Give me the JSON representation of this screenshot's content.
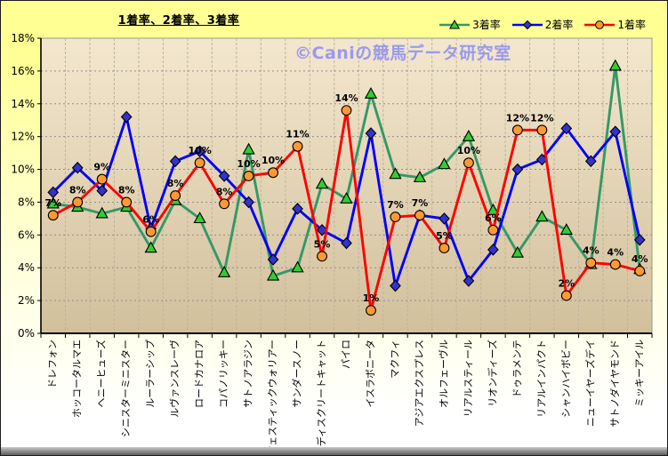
{
  "title": "1着率、2着率、3着率",
  "watermark": "©Caniの競馬データ研究室",
  "legend": {
    "items": [
      {
        "label": "3着率",
        "marker": "triangle"
      },
      {
        "label": "2着率",
        "marker": "diamond"
      },
      {
        "label": "1着率",
        "marker": "circle"
      }
    ]
  },
  "colors": {
    "page_top": "#FFFF94",
    "page_mid": "#FFFFD8",
    "page_bottom": "#FFFFFF",
    "plot_top": "#F3E7CE",
    "plot_bottom": "#D2C09C",
    "plot_frame": "#989890",
    "h_gridline": "#8F8F8F",
    "v_gridline": "#BFB49C",
    "axis": "#000000",
    "watermark": "#9A9AEE",
    "series_third_line": "#339966",
    "series_third_marker": "#33CC33",
    "series_second_line": "#0000FF",
    "series_second_marker": "#3333CC",
    "series_first_line": "#FF0000",
    "series_first_marker": "#FF9933",
    "marker_outline": "#000000",
    "label_text": "#000000"
  },
  "chart_data": {
    "type": "line",
    "title": "1着率、2着率、3着率",
    "xlabel": "",
    "ylabel": "",
    "ylim": [
      0,
      18
    ],
    "grid": true,
    "legend_position": "top-right",
    "categories": [
      "ドレフォン",
      "ホッコータルマエ",
      "ヘニーヒューズ",
      "シニスターミニスター",
      "ルーラーシップ",
      "ルヴァンスレーヴ",
      "ロードカナロア",
      "コパノリッキー",
      "サトノアラジン",
      "マジェスティックウォリアー",
      "サンダースノー",
      "ディスクリートキャット",
      "パイロ",
      "イスラボニータ",
      "マクフィ",
      "アジアエクスプレス",
      "オルフェーヴル",
      "リアルスティール",
      "リオンディーズ",
      "ドゥラメンテ",
      "リアルインパクト",
      "シャンハイボビー",
      "ニューイヤーズデイ",
      "サトノダイヤモンド",
      "ミッキーアイル"
    ],
    "series": [
      {
        "name": "3着率",
        "marker": "triangle",
        "values": [
          7.9,
          7.7,
          7.3,
          7.7,
          5.2,
          8.1,
          7.0,
          3.7,
          11.2,
          3.5,
          4.0,
          9.1,
          8.2,
          14.6,
          9.7,
          9.5,
          10.3,
          12.0,
          7.5,
          4.9,
          7.1,
          6.3,
          4.2,
          16.3,
          3.9
        ]
      },
      {
        "name": "2着率",
        "marker": "diamond",
        "values": [
          8.6,
          10.1,
          8.7,
          13.2,
          6.4,
          10.5,
          11.1,
          9.6,
          8.0,
          4.5,
          7.6,
          6.3,
          5.5,
          12.2,
          2.9,
          7.2,
          7.0,
          3.2,
          5.1,
          10.0,
          10.6,
          12.5,
          10.5,
          12.3,
          5.7
        ]
      },
      {
        "name": "1着率",
        "marker": "circle",
        "values": [
          7.2,
          8.0,
          9.4,
          8.0,
          6.2,
          8.4,
          10.4,
          7.9,
          9.6,
          9.8,
          11.4,
          4.7,
          13.6,
          1.4,
          7.1,
          7.2,
          5.2,
          10.4,
          6.3,
          12.4,
          12.4,
          2.3,
          4.3,
          4.2,
          3.8
        ]
      }
    ],
    "data_labels": {
      "series": "1着率",
      "labels": [
        "7%",
        "8%",
        "9%",
        "8%",
        "6%",
        "8%",
        "10%",
        "8%",
        "10%",
        "10%",
        "11%",
        "5%",
        "14%",
        "1%",
        "7%",
        "7%",
        "5%",
        "10%",
        "6%",
        "12%",
        "12%",
        "2%",
        "4%",
        "4%",
        "4%"
      ]
    },
    "y_axis": {
      "min": 0,
      "max": 18,
      "step": 2,
      "tick_labels": [
        "0%",
        "2%",
        "4%",
        "6%",
        "8%",
        "10%",
        "12%",
        "14%",
        "16%",
        "18%"
      ]
    }
  }
}
